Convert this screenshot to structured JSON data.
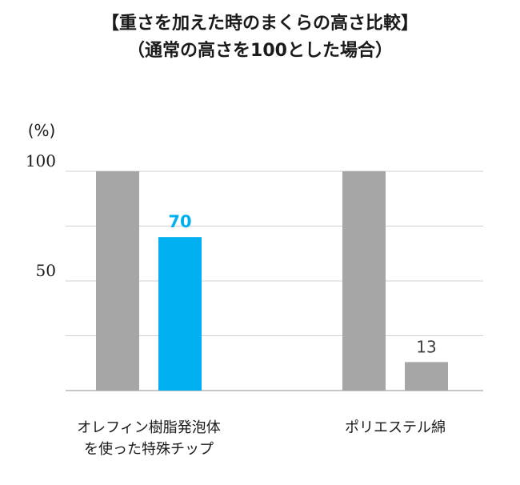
{
  "chart_data": {
    "type": "bar",
    "title_lines": [
      "【重さを加えた時のまくらの高さ比較】",
      "（通常の高さを100とした場合）"
    ],
    "y_unit_label": "(%)",
    "y_ticks": [
      "100",
      "50"
    ],
    "ylim": [
      0,
      100
    ],
    "grid": true,
    "groups": [
      {
        "label_lines": [
          "オレフィン樹脂発泡体",
          "を使った特殊チップ"
        ],
        "bars": [
          {
            "value": 100,
            "label": "",
            "color": "#a6a6a6",
            "label_color": "#404040"
          },
          {
            "value": 70,
            "label": "70",
            "color": "#00b0f0",
            "label_color": "#00b0f0"
          }
        ]
      },
      {
        "label_lines": [
          "ポリエステル綿"
        ],
        "bars": [
          {
            "value": 100,
            "label": "",
            "color": "#a6a6a6",
            "label_color": "#404040"
          },
          {
            "value": 13,
            "label": "13",
            "color": "#a6a6a6",
            "label_color": "#404040"
          }
        ]
      }
    ],
    "colors": {
      "gridline": "#d0d0d0",
      "axis": "#a6a6a6",
      "text": "#1a1a1a"
    }
  }
}
